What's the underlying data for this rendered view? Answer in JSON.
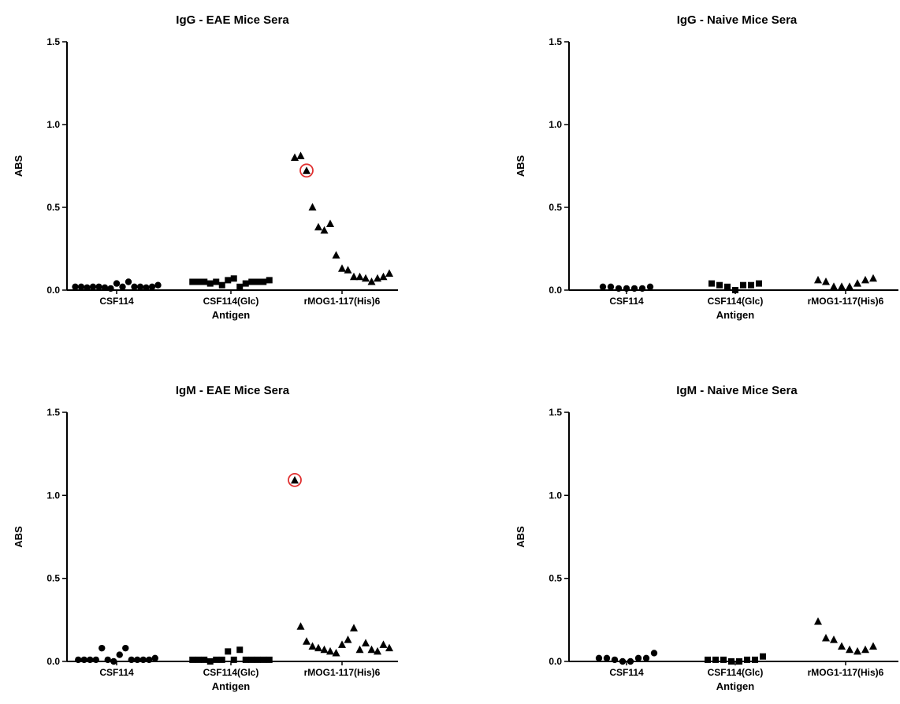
{
  "chart_data": [
    {
      "type": "scatter",
      "title": "IgG - EAE Mice Sera",
      "ylabel": "ABS",
      "xlabel": "Antigen",
      "ylim": [
        0,
        1.5
      ],
      "yticks": [
        "0.0",
        "0.5",
        "1.0",
        "1.5"
      ],
      "categories": [
        "CSF114",
        "CSF114(Glc)",
        "rMOG1-117(His)6"
      ],
      "series": [
        {
          "marker": "circle",
          "values": [
            0.02,
            0.02,
            0.015,
            0.02,
            0.02,
            0.015,
            0.01,
            0.04,
            0.02,
            0.05,
            0.02,
            0.02,
            0.015,
            0.02,
            0.03
          ]
        },
        {
          "marker": "square",
          "values": [
            0.05,
            0.05,
            0.05,
            0.04,
            0.05,
            0.03,
            0.06,
            0.07,
            0.02,
            0.04,
            0.05,
            0.05,
            0.05,
            0.06
          ]
        },
        {
          "marker": "triangle",
          "values": [
            0.8,
            0.81,
            0.72,
            0.5,
            0.38,
            0.36,
            0.4,
            0.21,
            0.13,
            0.12,
            0.08,
            0.08,
            0.07,
            0.05,
            0.07,
            0.08,
            0.1
          ]
        }
      ],
      "highlighted": {
        "category": "rMOG1-117(His)6",
        "value": 0.72,
        "ring_color": "#e03030"
      }
    },
    {
      "type": "scatter",
      "title": "IgG - Naive Mice Sera",
      "ylabel": "ABS",
      "xlabel": "Antigen",
      "ylim": [
        0,
        1.5
      ],
      "yticks": [
        "0.0",
        "0.5",
        "1.0",
        "1.5"
      ],
      "categories": [
        "CSF114",
        "CSF114(Glc)",
        "rMOG1-117(His)6"
      ],
      "series": [
        {
          "marker": "circle",
          "values": [
            0.02,
            0.02,
            0.01,
            0.01,
            0.01,
            0.01,
            0.02
          ]
        },
        {
          "marker": "square",
          "values": [
            0.04,
            0.03,
            0.02,
            0.0,
            0.03,
            0.03,
            0.04
          ]
        },
        {
          "marker": "triangle",
          "values": [
            0.06,
            0.05,
            0.02,
            0.02,
            0.02,
            0.04,
            0.06,
            0.07
          ]
        }
      ]
    },
    {
      "type": "scatter",
      "title": "IgM - EAE Mice Sera",
      "ylabel": "ABS",
      "xlabel": "Antigen",
      "ylim": [
        0,
        1.5
      ],
      "yticks": [
        "0.0",
        "0.5",
        "1.0",
        "1.5"
      ],
      "categories": [
        "CSF114",
        "CSF114(Glc)",
        "rMOG1-117(His)6"
      ],
      "series": [
        {
          "marker": "circle",
          "values": [
            0.01,
            0.01,
            0.01,
            0.01,
            0.08,
            0.01,
            0.0,
            0.04,
            0.08,
            0.01,
            0.01,
            0.01,
            0.01,
            0.02
          ]
        },
        {
          "marker": "square",
          "values": [
            0.01,
            0.01,
            0.01,
            0.0,
            0.01,
            0.01,
            0.06,
            0.01,
            0.07,
            0.01,
            0.01,
            0.01,
            0.01,
            0.01
          ]
        },
        {
          "marker": "triangle",
          "values": [
            1.09,
            0.21,
            0.12,
            0.09,
            0.08,
            0.07,
            0.06,
            0.05,
            0.1,
            0.13,
            0.2,
            0.07,
            0.11,
            0.07,
            0.06,
            0.1,
            0.08
          ]
        }
      ],
      "highlighted": {
        "category": "rMOG1-117(His)6",
        "value": 1.09,
        "ring_color": "#e03030"
      }
    },
    {
      "type": "scatter",
      "title": "IgM - Naive Mice Sera",
      "ylabel": "ABS",
      "xlabel": "Antigen",
      "ylim": [
        0,
        1.5
      ],
      "yticks": [
        "0.0",
        "0.5",
        "1.0",
        "1.5"
      ],
      "categories": [
        "CSF114",
        "CSF114(Glc)",
        "rMOG1-117(His)6"
      ],
      "series": [
        {
          "marker": "circle",
          "values": [
            0.02,
            0.02,
            0.01,
            0.0,
            0.0,
            0.02,
            0.02,
            0.05
          ]
        },
        {
          "marker": "square",
          "values": [
            0.01,
            0.01,
            0.01,
            0.0,
            0.0,
            0.01,
            0.01,
            0.03
          ]
        },
        {
          "marker": "triangle",
          "values": [
            0.24,
            0.14,
            0.13,
            0.09,
            0.07,
            0.06,
            0.07,
            0.09
          ]
        }
      ]
    }
  ]
}
